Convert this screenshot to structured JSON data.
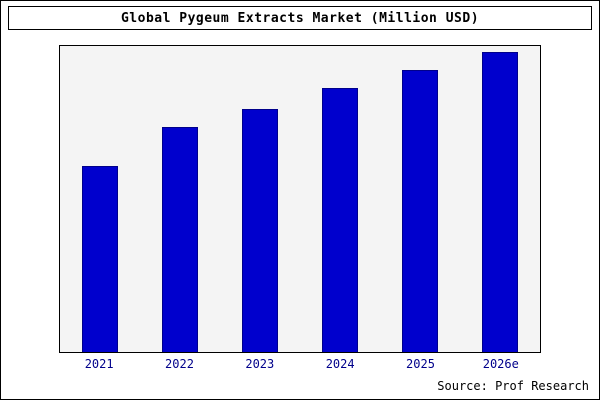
{
  "title": "Global Pygeum Extracts Market (Million USD)",
  "source": "Source: Prof Research",
  "colors": {
    "bar": "#0000CD",
    "bar_border": "#00008B",
    "plot_background": "#f4f4f4",
    "frame_border": "#000000",
    "tick_label": "#00008B"
  },
  "chart_data": {
    "type": "bar",
    "title": "Global Pygeum Extracts Market (Million USD)",
    "categories": [
      "2021",
      "2022",
      "2023",
      "2024",
      "2025",
      "2026e"
    ],
    "values": [
      62,
      75,
      81,
      88,
      94,
      100
    ],
    "xlabel": "",
    "ylabel": "",
    "ylim": [
      0,
      102
    ],
    "grid": false,
    "legend": false,
    "bar_color": "#0000CD",
    "annotation": "Source: Prof Research"
  }
}
